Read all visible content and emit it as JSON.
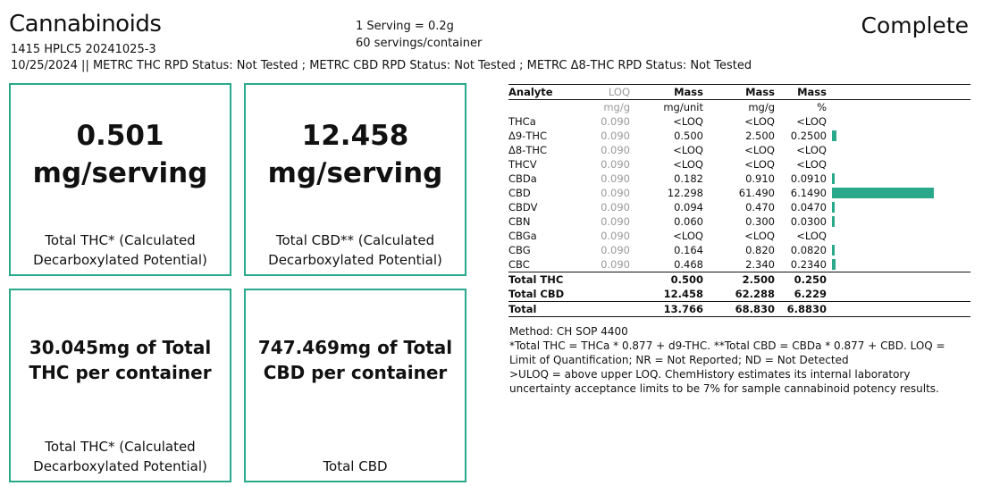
{
  "header": {
    "title": "Cannabinoids",
    "batch": "1415 HPLC5 20241025-3",
    "status_line": "10/25/2024 || METRC THC RPD Status: Not Tested ; METRC CBD RPD Status: Not Tested ; METRC Δ8-THC RPD Status: Not Tested",
    "serving_size": "1 Serving = 0.2g",
    "servings_per_container": "60 servings/container",
    "status": "Complete"
  },
  "cards": [
    {
      "value": "0.501",
      "unit": "mg/serving",
      "caption1": "Total THC* (Calculated",
      "caption2": "Decarboxylated Potential)"
    },
    {
      "value": "12.458",
      "unit": "mg/serving",
      "caption1": "Total CBD** (Calculated",
      "caption2": "Decarboxylated Potential)"
    },
    {
      "line1": "30.045mg of Total",
      "line2": "THC per container",
      "caption1": "Total THC* (Calculated",
      "caption2": "Decarboxylated Potential)"
    },
    {
      "line1": "747.469mg of Total",
      "line2": "CBD per container",
      "caption1": "Total CBD"
    }
  ],
  "table": {
    "headers": [
      "Analyte",
      "LOQ",
      "Mass",
      "Mass",
      "Mass"
    ],
    "units": [
      "",
      "mg/g",
      "mg/unit",
      "mg/g",
      "%"
    ],
    "rows": [
      {
        "analyte": "THCa",
        "loq": "0.090",
        "mg_unit": "<LOQ",
        "mg_g": "<LOQ",
        "pct": "<LOQ",
        "pct_value": 0
      },
      {
        "analyte": "Δ9-THC",
        "loq": "0.090",
        "mg_unit": "0.500",
        "mg_g": "2.500",
        "pct": "0.2500",
        "pct_value": 0.25
      },
      {
        "analyte": "Δ8-THC",
        "loq": "0.090",
        "mg_unit": "<LOQ",
        "mg_g": "<LOQ",
        "pct": "<LOQ",
        "pct_value": 0
      },
      {
        "analyte": "THCV",
        "loq": "0.090",
        "mg_unit": "<LOQ",
        "mg_g": "<LOQ",
        "pct": "<LOQ",
        "pct_value": 0
      },
      {
        "analyte": "CBDa",
        "loq": "0.090",
        "mg_unit": "0.182",
        "mg_g": "0.910",
        "pct": "0.0910",
        "pct_value": 0.091
      },
      {
        "analyte": "CBD",
        "loq": "0.090",
        "mg_unit": "12.298",
        "mg_g": "61.490",
        "pct": "6.1490",
        "pct_value": 6.149
      },
      {
        "analyte": "CBDV",
        "loq": "0.090",
        "mg_unit": "0.094",
        "mg_g": "0.470",
        "pct": "0.0470",
        "pct_value": 0.047
      },
      {
        "analyte": "CBN",
        "loq": "0.090",
        "mg_unit": "0.060",
        "mg_g": "0.300",
        "pct": "0.0300",
        "pct_value": 0.03
      },
      {
        "analyte": "CBGa",
        "loq": "0.090",
        "mg_unit": "<LOQ",
        "mg_g": "<LOQ",
        "pct": "<LOQ",
        "pct_value": 0
      },
      {
        "analyte": "CBG",
        "loq": "0.090",
        "mg_unit": "0.164",
        "mg_g": "0.820",
        "pct": "0.0820",
        "pct_value": 0.082
      },
      {
        "analyte": "CBC",
        "loq": "0.090",
        "mg_unit": "0.468",
        "mg_g": "2.340",
        "pct": "0.2340",
        "pct_value": 0.234
      }
    ],
    "totals": [
      {
        "analyte": "Total THC",
        "mg_unit": "0.500",
        "mg_g": "2.500",
        "pct": "0.250"
      },
      {
        "analyte": "Total CBD",
        "mg_unit": "12.458",
        "mg_g": "62.288",
        "pct": "6.229"
      }
    ],
    "grand_total": {
      "analyte": "Total",
      "mg_unit": "13.766",
      "mg_g": "68.830",
      "pct": "6.8830"
    },
    "bar_color": "#2aa98a"
  },
  "notes": {
    "method": "Method: CH SOP 4400",
    "formula": "*Total THC = THCa * 0.877 + d9-THC. **Total CBD = CBDa * 0.877 + CBD. LOQ = Limit of Quantification; NR = Not Reported; ND = Not Detected",
    "uloq": ">ULOQ = above upper LOQ. ChemHistory estimates its internal laboratory uncertainty acceptance limits to be 7% for sample cannabinoid potency results."
  }
}
